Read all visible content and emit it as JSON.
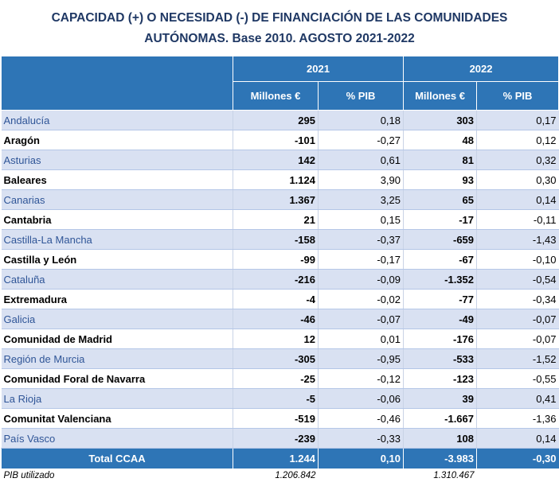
{
  "title": {
    "line1": "CAPACIDAD (+) O NECESIDAD (-) DE FINANCIACIÓN DE LAS COMUNIDADES",
    "line2": "AUTÓNOMAS. Base 2010. AGOSTO  2021-2022"
  },
  "years": [
    "2021",
    "2022"
  ],
  "columns": [
    "Millones €",
    "% PIB",
    "Millones €",
    "% PIB"
  ],
  "rows": [
    {
      "name": "Andalucía",
      "m2021": "295",
      "p2021": "0,18",
      "m2022": "303",
      "p2022": "0,17"
    },
    {
      "name": "Aragón",
      "m2021": "-101",
      "p2021": "-0,27",
      "m2022": "48",
      "p2022": "0,12"
    },
    {
      "name": "Asturias",
      "m2021": "142",
      "p2021": "0,61",
      "m2022": "81",
      "p2022": "0,32"
    },
    {
      "name": "Baleares",
      "m2021": "1.124",
      "p2021": "3,90",
      "m2022": "93",
      "p2022": "0,30"
    },
    {
      "name": "Canarias",
      "m2021": "1.367",
      "p2021": "3,25",
      "m2022": "65",
      "p2022": "0,14"
    },
    {
      "name": "Cantabria",
      "m2021": "21",
      "p2021": "0,15",
      "m2022": "-17",
      "p2022": "-0,11"
    },
    {
      "name": "Castilla-La Mancha",
      "m2021": "-158",
      "p2021": "-0,37",
      "m2022": "-659",
      "p2022": "-1,43"
    },
    {
      "name": "Castilla y León",
      "m2021": "-99",
      "p2021": "-0,17",
      "m2022": "-67",
      "p2022": "-0,10"
    },
    {
      "name": "Cataluña",
      "m2021": "-216",
      "p2021": "-0,09",
      "m2022": "-1.352",
      "p2022": "-0,54"
    },
    {
      "name": "Extremadura",
      "m2021": "-4",
      "p2021": "-0,02",
      "m2022": "-77",
      "p2022": "-0,34"
    },
    {
      "name": "Galicia",
      "m2021": "-46",
      "p2021": "-0,07",
      "m2022": "-49",
      "p2022": "-0,07"
    },
    {
      "name": "Comunidad de Madrid",
      "m2021": "12",
      "p2021": "0,01",
      "m2022": "-176",
      "p2022": "-0,07"
    },
    {
      "name": "Región de Murcia",
      "m2021": "-305",
      "p2021": "-0,95",
      "m2022": "-533",
      "p2022": "-1,52"
    },
    {
      "name": "Comunidad Foral de Navarra",
      "m2021": "-25",
      "p2021": "-0,12",
      "m2022": "-123",
      "p2022": "-0,55"
    },
    {
      "name": "La Rioja",
      "m2021": "-5",
      "p2021": "-0,06",
      "m2022": "39",
      "p2022": "0,41"
    },
    {
      "name": "Comunitat Valenciana",
      "m2021": "-519",
      "p2021": "-0,46",
      "m2022": "-1.667",
      "p2022": "-1,36"
    },
    {
      "name": "País Vasco",
      "m2021": "-239",
      "p2021": "-0,33",
      "m2022": "108",
      "p2022": "0,14"
    }
  ],
  "total": {
    "name": "Total CCAA",
    "m2021": "1.244",
    "p2021": "0,10",
    "m2022": "-3.983",
    "p2022": "-0,30"
  },
  "pib": {
    "label": "PIB utilizado",
    "v2021": "1.206.842",
    "v2022": "1.310.467"
  }
}
